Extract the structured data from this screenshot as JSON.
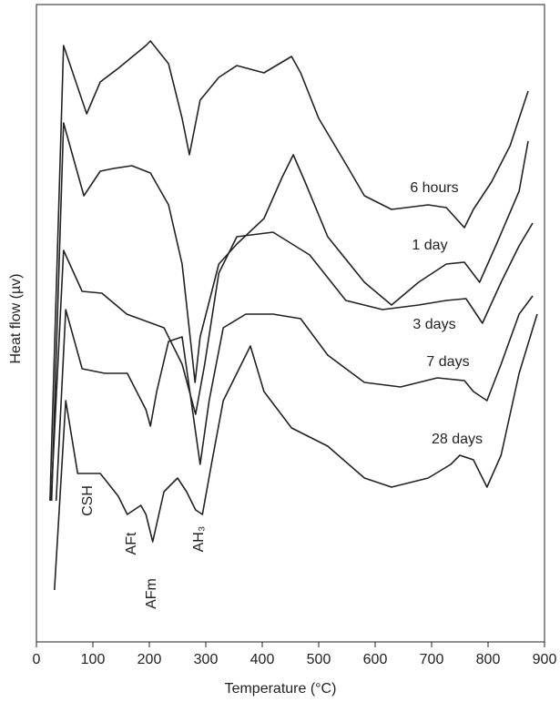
{
  "chart_data": {
    "type": "line",
    "xlabel": "Temperature (°C)",
    "ylabel": "Heat flow (µv)",
    "xlim": [
      0,
      900
    ],
    "xticks": [
      0,
      100,
      200,
      300,
      400,
      500,
      600,
      700,
      800,
      900
    ],
    "ylim": [
      0,
      700
    ],
    "series": [
      {
        "name": "6 hours",
        "color": "#222222",
        "x": [
          24,
          48,
          89,
          113,
          145,
          194,
          202,
          234,
          258,
          271,
          290,
          323,
          355,
          403,
          452,
          468,
          500,
          548,
          581,
          629,
          694,
          726,
          758,
          774,
          806,
          839,
          871
        ],
        "values": [
          155,
          655,
          580,
          615,
          630,
          655,
          660,
          635,
          575,
          535,
          595,
          620,
          633,
          625,
          643,
          625,
          575,
          525,
          490,
          475,
          480,
          477,
          455,
          475,
          505,
          545,
          605
        ]
      },
      {
        "name": "1 day",
        "color": "#222222",
        "x": [
          27,
          48,
          84,
          113,
          137,
          169,
          202,
          234,
          258,
          274,
          281,
          290,
          323,
          355,
          403,
          435,
          455,
          476,
          516,
          581,
          629,
          677,
          726,
          758,
          785,
          815,
          855,
          871
        ],
        "values": [
          155,
          570,
          490,
          517,
          520,
          523,
          515,
          480,
          415,
          325,
          285,
          335,
          415,
          437,
          465,
          510,
          535,
          505,
          445,
          395,
          370,
          395,
          415,
          417,
          395,
          437,
          495,
          550
        ]
      },
      {
        "name": "3 days",
        "color": "#222222",
        "x": [
          26,
          48,
          81,
          116,
          160,
          226,
          258,
          282,
          298,
          323,
          355,
          419,
          484,
          548,
          613,
          677,
          726,
          761,
          790,
          823,
          855,
          879
        ],
        "values": [
          155,
          430,
          385,
          383,
          360,
          345,
          305,
          250,
          305,
          405,
          445,
          450,
          425,
          375,
          365,
          370,
          375,
          377,
          350,
          395,
          435,
          460
        ]
      },
      {
        "name": "7 days",
        "color": "#222222",
        "x": [
          35,
          52,
          81,
          121,
          161,
          194,
          202,
          213,
          234,
          258,
          274,
          290,
          306,
          331,
          371,
          419,
          468,
          516,
          581,
          645,
          710,
          758,
          774,
          798,
          823,
          855,
          879
        ],
        "values": [
          155,
          365,
          300,
          295,
          295,
          255,
          237,
          275,
          330,
          335,
          265,
          195,
          265,
          345,
          360,
          360,
          355,
          315,
          285,
          280,
          290,
          287,
          275,
          265,
          305,
          360,
          380
        ]
      },
      {
        "name": "28 days",
        "color": "#222222",
        "x": [
          32,
          52,
          73,
          97,
          113,
          145,
          161,
          185,
          194,
          206,
          226,
          250,
          266,
          282,
          294,
          310,
          331,
          355,
          379,
          403,
          452,
          516,
          581,
          629,
          694,
          734,
          750,
          774,
          798,
          823,
          855,
          887
        ],
        "values": [
          57,
          265,
          185,
          185,
          185,
          160,
          140,
          150,
          140,
          110,
          165,
          180,
          165,
          145,
          140,
          195,
          265,
          295,
          325,
          275,
          235,
          215,
          180,
          170,
          180,
          195,
          205,
          200,
          170,
          205,
          295,
          360
        ]
      }
    ],
    "annotations": [
      "CSH",
      "AFt",
      "AFm",
      "AH₃"
    ]
  }
}
